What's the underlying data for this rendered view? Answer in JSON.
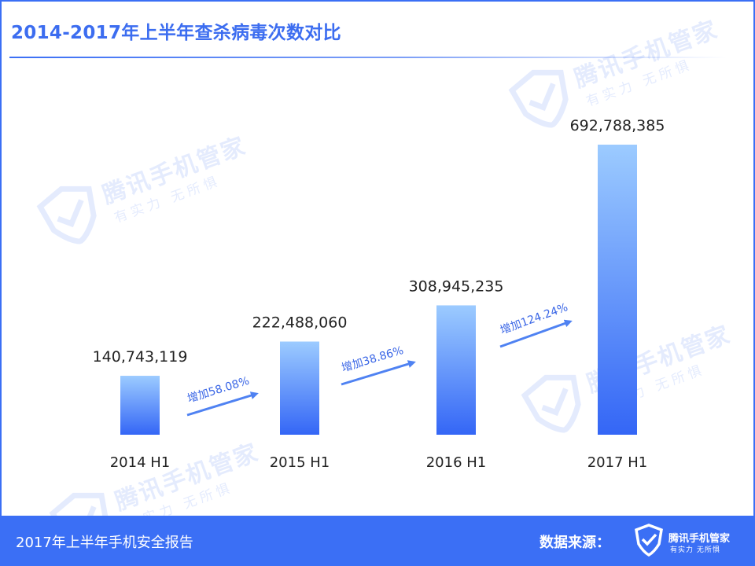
{
  "header": {
    "title": "2014-2017年上半年查杀病毒次数对比"
  },
  "watermark": {
    "brand": "腾讯手机管家",
    "slogan": "有实力 无所惧"
  },
  "chart_data": {
    "type": "bar",
    "title": "2014-2017年上半年查杀病毒次数对比",
    "categories": [
      "2014 H1",
      "2015 H1",
      "2016 H1",
      "2017 H1"
    ],
    "values": [
      140743119,
      222488060,
      308945235,
      692788385
    ],
    "value_labels": [
      "140,743,119",
      "222,488,060",
      "308,945,235",
      "692,788,385"
    ],
    "growth_annotations": [
      {
        "from": "2014 H1",
        "to": "2015 H1",
        "label": "增加58.08%"
      },
      {
        "from": "2015 H1",
        "to": "2016 H1",
        "label": "增加38.86%"
      },
      {
        "from": "2016 H1",
        "to": "2017 H1",
        "label": "增加124.24%"
      }
    ],
    "xlabel": "",
    "ylabel": "",
    "ylim": [
      0,
      692788385
    ],
    "grid": false,
    "legend": "none",
    "colors": {
      "bar_top": "#9ccbff",
      "bar_bottom": "#3466f6",
      "arrow": "#4f82f2",
      "annotation": "#3a66e6",
      "text": "#222222"
    }
  },
  "footer": {
    "report_title": "2017年上半年手机安全报告",
    "source_label": "数据来源：",
    "logo_icon": "shield-check-icon",
    "brand": "腾讯手机管家",
    "slogan": "有实力 无所惧"
  },
  "colors": {
    "accent": "#3b6ff5",
    "title": "#3c6df0"
  }
}
